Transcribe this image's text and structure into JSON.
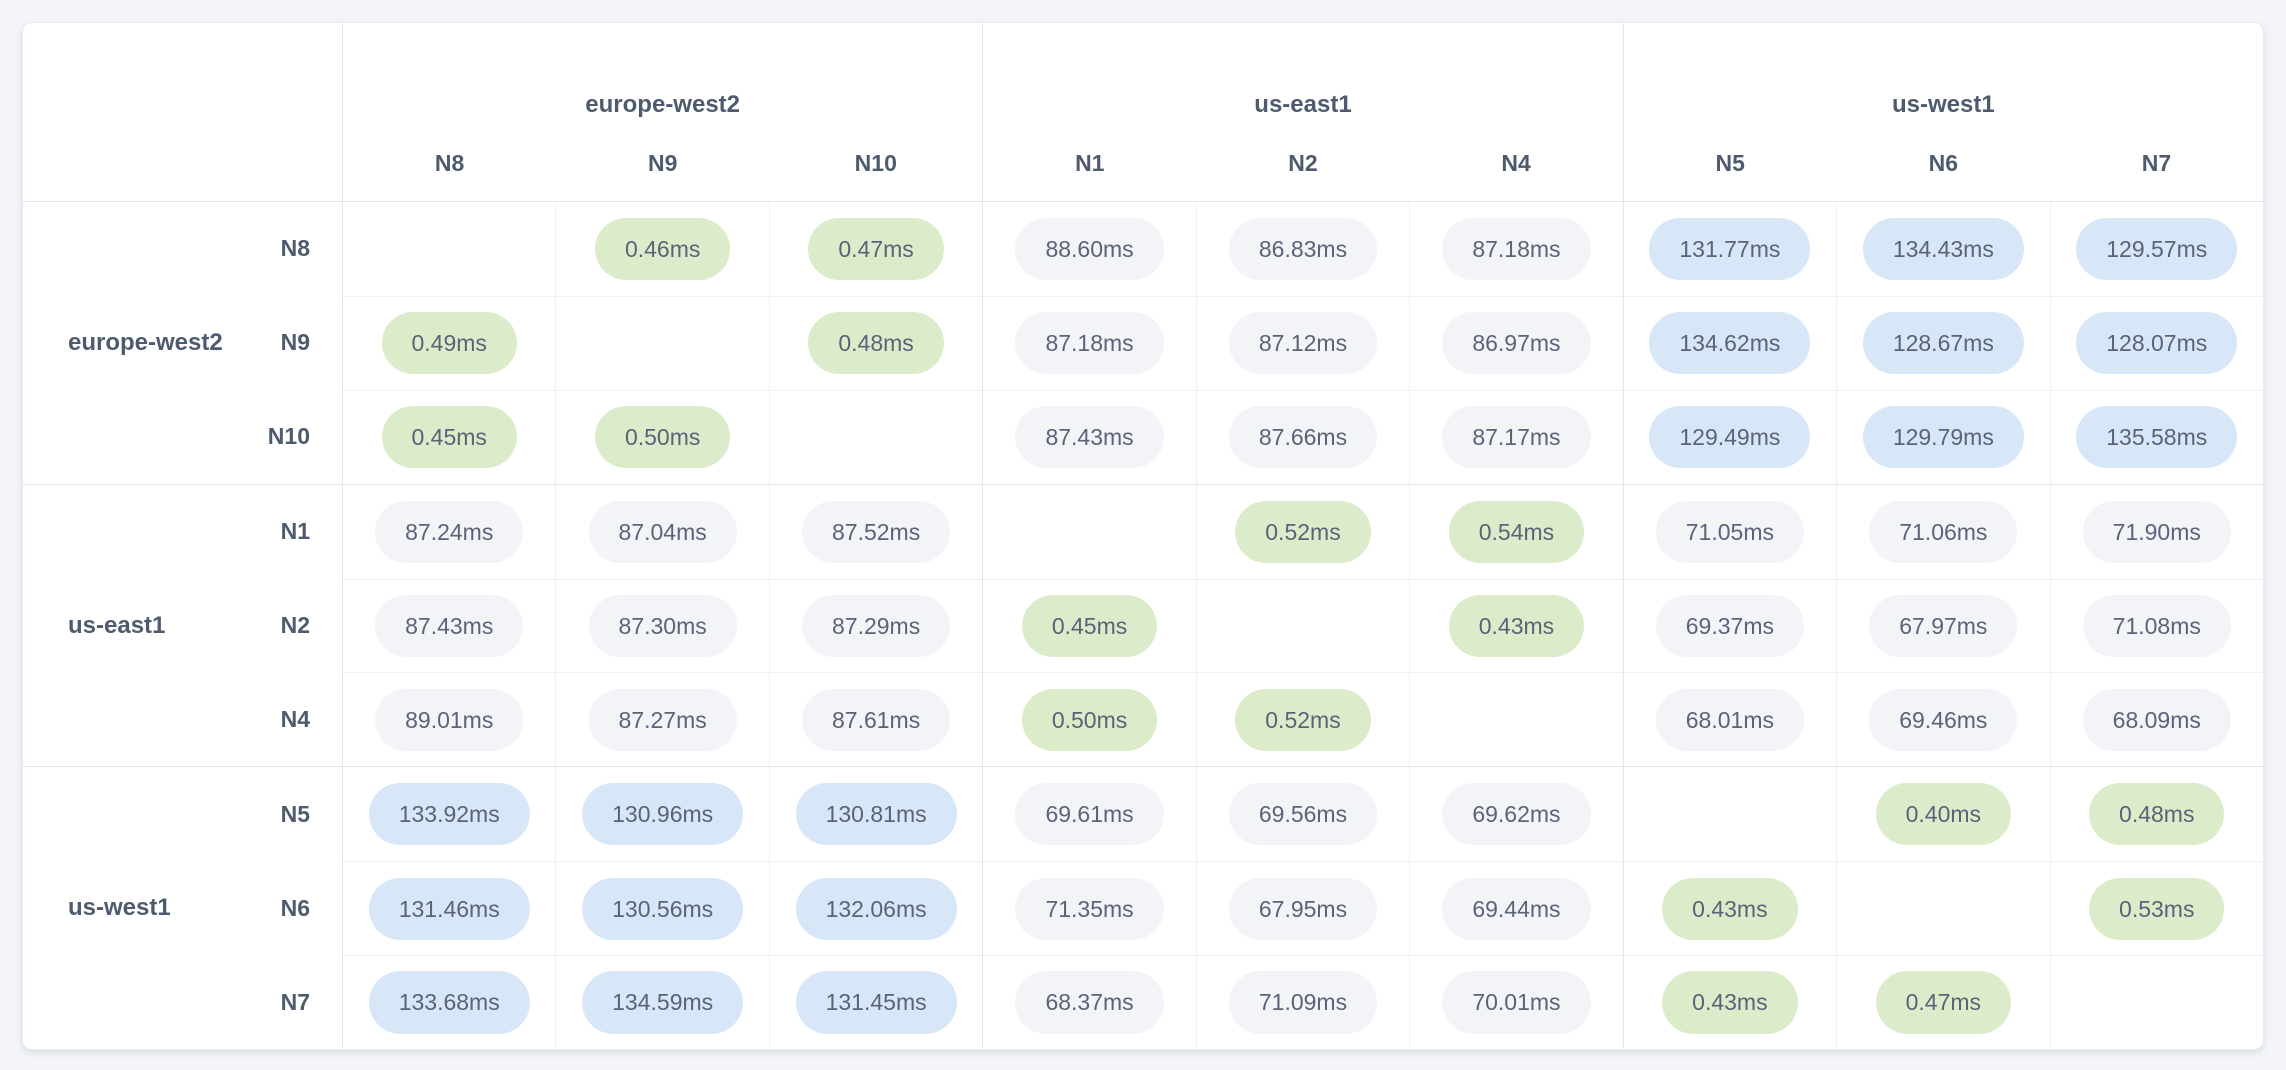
{
  "table": {
    "unit_suffix": "ms",
    "regions": [
      {
        "name": "europe-west2",
        "nodes": [
          "N8",
          "N9",
          "N10"
        ]
      },
      {
        "name": "us-east1",
        "nodes": [
          "N1",
          "N2",
          "N4"
        ]
      },
      {
        "name": "us-west1",
        "nodes": [
          "N5",
          "N6",
          "N7"
        ]
      }
    ],
    "columns": [
      "N8",
      "N9",
      "N10",
      "N1",
      "N2",
      "N4",
      "N5",
      "N6",
      "N7"
    ],
    "rows": [
      {
        "region": "europe-west2",
        "node": "N8",
        "cells": [
          "",
          "0.46ms",
          "0.47ms",
          "88.60ms",
          "86.83ms",
          "87.18ms",
          "131.77ms",
          "134.43ms",
          "129.57ms"
        ]
      },
      {
        "region": "europe-west2",
        "node": "N9",
        "cells": [
          "0.49ms",
          "",
          "0.48ms",
          "87.18ms",
          "87.12ms",
          "86.97ms",
          "134.62ms",
          "128.67ms",
          "128.07ms"
        ]
      },
      {
        "region": "europe-west2",
        "node": "N10",
        "cells": [
          "0.45ms",
          "0.50ms",
          "",
          "87.43ms",
          "87.66ms",
          "87.17ms",
          "129.49ms",
          "129.79ms",
          "135.58ms"
        ]
      },
      {
        "region": "us-east1",
        "node": "N1",
        "cells": [
          "87.24ms",
          "87.04ms",
          "87.52ms",
          "",
          "0.52ms",
          "0.54ms",
          "71.05ms",
          "71.06ms",
          "71.90ms"
        ]
      },
      {
        "region": "us-east1",
        "node": "N2",
        "cells": [
          "87.43ms",
          "87.30ms",
          "87.29ms",
          "0.45ms",
          "",
          "0.43ms",
          "69.37ms",
          "67.97ms",
          "71.08ms"
        ]
      },
      {
        "region": "us-east1",
        "node": "N4",
        "cells": [
          "89.01ms",
          "87.27ms",
          "87.61ms",
          "0.50ms",
          "0.52ms",
          "",
          "68.01ms",
          "69.46ms",
          "68.09ms"
        ]
      },
      {
        "region": "us-west1",
        "node": "N5",
        "cells": [
          "133.92ms",
          "130.96ms",
          "130.81ms",
          "69.61ms",
          "69.56ms",
          "69.62ms",
          "",
          "0.40ms",
          "0.48ms"
        ]
      },
      {
        "region": "us-west1",
        "node": "N6",
        "cells": [
          "131.46ms",
          "130.56ms",
          "132.06ms",
          "71.35ms",
          "67.95ms",
          "69.44ms",
          "0.43ms",
          "",
          "0.53ms"
        ]
      },
      {
        "region": "us-west1",
        "node": "N7",
        "cells": [
          "133.68ms",
          "134.59ms",
          "131.45ms",
          "68.37ms",
          "71.09ms",
          "70.01ms",
          "0.43ms",
          "0.47ms",
          ""
        ]
      }
    ]
  },
  "colors": {
    "page_bg": "#f3f5f9",
    "card_bg": "#ffffff",
    "border_strong": "#e2e6ee",
    "border_inner": "#edf0f6",
    "pill_green": "#dceccb",
    "pill_blue": "#d7e7f8",
    "pill_gray": "#f2f4f8",
    "text": "#5a6377",
    "label_text": "#4e5a6e"
  },
  "chart_data": {
    "type": "heatmap",
    "unit": "ms",
    "rows": [
      "N8",
      "N9",
      "N10",
      "N1",
      "N2",
      "N4",
      "N5",
      "N6",
      "N7"
    ],
    "columns": [
      "N8",
      "N9",
      "N10",
      "N1",
      "N2",
      "N4",
      "N5",
      "N6",
      "N7"
    ],
    "row_groups": [
      {
        "label": "europe-west2",
        "members": [
          "N8",
          "N9",
          "N10"
        ]
      },
      {
        "label": "us-east1",
        "members": [
          "N1",
          "N2",
          "N4"
        ]
      },
      {
        "label": "us-west1",
        "members": [
          "N5",
          "N6",
          "N7"
        ]
      }
    ],
    "values": [
      [
        null,
        0.46,
        0.47,
        88.6,
        86.83,
        87.18,
        131.77,
        134.43,
        129.57
      ],
      [
        0.49,
        null,
        0.48,
        87.18,
        87.12,
        86.97,
        134.62,
        128.67,
        128.07
      ],
      [
        0.45,
        0.5,
        null,
        87.43,
        87.66,
        87.17,
        129.49,
        129.79,
        135.58
      ],
      [
        87.24,
        87.04,
        87.52,
        null,
        0.52,
        0.54,
        71.05,
        71.06,
        71.9
      ],
      [
        87.43,
        87.3,
        87.29,
        0.45,
        null,
        0.43,
        69.37,
        67.97,
        71.08
      ],
      [
        89.01,
        87.27,
        87.61,
        0.5,
        0.52,
        null,
        68.01,
        69.46,
        68.09
      ],
      [
        133.92,
        130.96,
        130.81,
        69.61,
        69.56,
        69.62,
        null,
        0.4,
        0.48
      ],
      [
        131.46,
        130.56,
        132.06,
        71.35,
        67.95,
        69.44,
        0.43,
        null,
        0.53
      ],
      [
        133.68,
        134.59,
        131.45,
        68.37,
        71.09,
        70.01,
        0.43,
        0.47,
        null
      ]
    ],
    "cell_color_rule": {
      "lt_1ms": "green (intra-region)",
      "1_to_100ms": "gray (cross-region mid)",
      "gt_100ms": "blue (cross-region high)"
    }
  }
}
